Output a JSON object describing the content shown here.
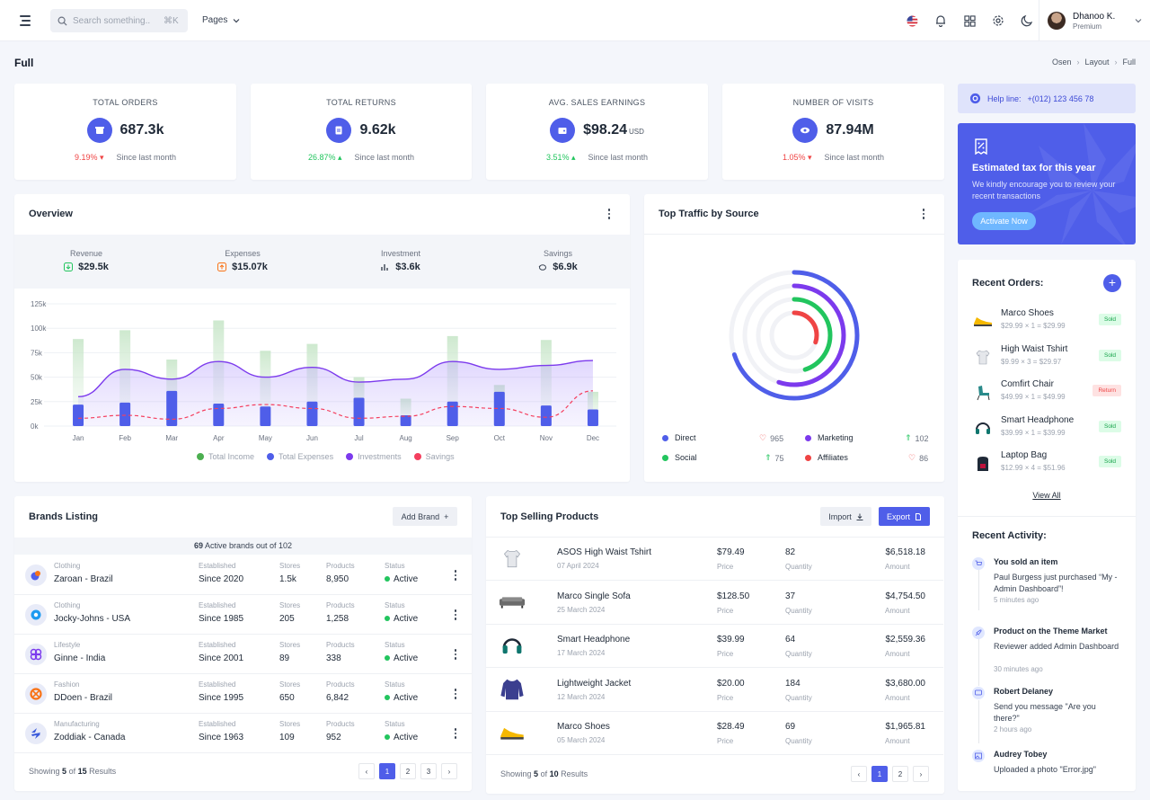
{
  "topbar": {
    "search_placeholder": "Search something..",
    "search_shortcut": "⌘K",
    "pages_label": "Pages",
    "user_name": "Dhanoo K.",
    "user_role": "Premium"
  },
  "page": {
    "title": "Full",
    "breadcrumb": [
      "Osen",
      "Layout",
      "Full"
    ]
  },
  "stats": [
    {
      "title": "TOTAL ORDERS",
      "value": "687.3k",
      "unit": "",
      "change": "9.19%",
      "dir": "down",
      "note": "Since last month",
      "icon": "box-icon"
    },
    {
      "title": "TOTAL RETURNS",
      "value": "9.62k",
      "unit": "",
      "change": "26.87%",
      "dir": "up",
      "note": "Since last month",
      "icon": "return-icon"
    },
    {
      "title": "AVG. SALES EARNINGS",
      "value": "$98.24",
      "unit": "USD",
      "change": "3.51%",
      "dir": "up",
      "note": "Since last month",
      "icon": "wallet-icon"
    },
    {
      "title": "NUMBER OF VISITS",
      "value": "87.94M",
      "unit": "",
      "change": "1.05%",
      "dir": "down",
      "note": "Since last month",
      "icon": "eye-icon"
    }
  ],
  "overview": {
    "title": "Overview",
    "summary": [
      {
        "label": "Revenue",
        "value": "$29.5k"
      },
      {
        "label": "Expenses",
        "value": "$15.07k"
      },
      {
        "label": "Investment",
        "value": "$3.6k"
      },
      {
        "label": "Savings",
        "value": "$6.9k"
      }
    ],
    "legend": [
      "Total Income",
      "Total Expenses",
      "Investments",
      "Savings"
    ]
  },
  "chart_data": {
    "type": "bar",
    "categories": [
      "Jan",
      "Feb",
      "Mar",
      "Apr",
      "May",
      "Jun",
      "Jul",
      "Aug",
      "Sep",
      "Oct",
      "Nov",
      "Dec"
    ],
    "ylim": [
      0,
      125000
    ],
    "yticks": [
      "0k",
      "25k",
      "50k",
      "75k",
      "100k",
      "125k"
    ],
    "series": [
      {
        "name": "Total Income",
        "kind": "bar",
        "color": "#c8e6c9",
        "values": [
          89000,
          98000,
          68000,
          108000,
          77000,
          84000,
          50000,
          28000,
          92000,
          42000,
          88000,
          35000
        ]
      },
      {
        "name": "Total Expenses",
        "kind": "bar",
        "color": "#4f5ee9",
        "values": [
          22000,
          24000,
          36000,
          23000,
          20000,
          25000,
          29000,
          11000,
          25000,
          35000,
          21000,
          17000
        ]
      },
      {
        "name": "Investments",
        "kind": "line",
        "color": "#7c3aed",
        "values": [
          30000,
          58000,
          48000,
          66000,
          50000,
          60000,
          45000,
          48000,
          66000,
          58000,
          62000,
          67000
        ]
      },
      {
        "name": "Savings",
        "kind": "line",
        "color": "#f43f5e",
        "values": [
          8000,
          11000,
          7000,
          18000,
          22000,
          18000,
          8000,
          10000,
          20000,
          18000,
          9000,
          36000
        ]
      }
    ]
  },
  "traffic": {
    "title": "Top Traffic by Source",
    "items": [
      {
        "label": "Direct",
        "value": "965",
        "color": "#4f5ee9",
        "dir": "down"
      },
      {
        "label": "Marketing",
        "value": "102",
        "color": "#7c3aed",
        "dir": "up"
      },
      {
        "label": "Social",
        "value": "75",
        "color": "#22c55e",
        "dir": "up"
      },
      {
        "label": "Affiliates",
        "value": "86",
        "color": "#ef4444",
        "dir": "down"
      }
    ],
    "percentages": [
      70,
      55,
      45,
      30
    ]
  },
  "help": {
    "label": "Help line:",
    "phone": "+(012) 123 456 78"
  },
  "tax": {
    "title": "Estimated tax for this year",
    "text": "We kindly encourage you to review your recent transactions",
    "button": "Activate Now"
  },
  "recent_orders": {
    "title": "Recent Orders:",
    "view_all": "View All",
    "items": [
      {
        "name": "Marco Shoes",
        "sub": "$29.99 × 1 = $29.99",
        "status": "Sold"
      },
      {
        "name": "High Waist Tshirt",
        "sub": "$9.99 × 3 = $29.97",
        "status": "Sold"
      },
      {
        "name": "Comfirt Chair",
        "sub": "$49.99 × 1 = $49.99",
        "status": "Return"
      },
      {
        "name": "Smart Headphone",
        "sub": "$39.99 × 1 = $39.99",
        "status": "Sold"
      },
      {
        "name": "Laptop Bag",
        "sub": "$12.99 × 4 = $51.96",
        "status": "Sold"
      }
    ]
  },
  "recent_activity": {
    "title": "Recent Activity:",
    "items": [
      {
        "title": "You sold an item",
        "desc": "Paul Burgess just purchased “My - Admin Dashboard”!",
        "time": "5 minutes ago"
      },
      {
        "title": "Product on the Theme Market",
        "desc": "Reviewer added Admin Dashboard",
        "time": "30 minutes ago"
      },
      {
        "title": "Robert Delaney",
        "desc": "Send you message \"Are you there?\"",
        "time": "2 hours ago"
      },
      {
        "title": "Audrey Tobey",
        "desc": "Uploaded a photo \"Error.jpg\"",
        "time": ""
      }
    ]
  },
  "brands": {
    "title": "Brands Listing",
    "add_label": "Add Brand",
    "summary_count": "69",
    "summary_text": "Active brands out of 102",
    "col_labels": {
      "established": "Established",
      "stores": "Stores",
      "products": "Products",
      "status": "Status"
    },
    "rows": [
      {
        "category": "Clothing",
        "name": "Zaroan - Brazil",
        "established": "Since 2020",
        "stores": "1.5k",
        "products": "8,950",
        "status": "Active"
      },
      {
        "category": "Clothing",
        "name": "Jocky-Johns - USA",
        "established": "Since 1985",
        "stores": "205",
        "products": "1,258",
        "status": "Active"
      },
      {
        "category": "Lifestyle",
        "name": "Ginne - India",
        "established": "Since 2001",
        "stores": "89",
        "products": "338",
        "status": "Active"
      },
      {
        "category": "Fashion",
        "name": "DDoen - Brazil",
        "established": "Since 1995",
        "stores": "650",
        "products": "6,842",
        "status": "Active"
      },
      {
        "category": "Manufacturing",
        "name": "Zoddiak - Canada",
        "established": "Since 1963",
        "stores": "109",
        "products": "952",
        "status": "Active"
      }
    ],
    "footer_pre": "Showing",
    "footer_num": "5",
    "footer_mid": "of",
    "footer_total": "15",
    "footer_post": "Results",
    "pages": [
      "1",
      "2",
      "3"
    ]
  },
  "products": {
    "title": "Top Selling Products",
    "import_label": "Import",
    "export_label": "Export",
    "labels": {
      "price": "Price",
      "quantity": "Quantity",
      "amount": "Amount"
    },
    "rows": [
      {
        "name": "ASOS High Waist Tshirt",
        "date": "07 April 2024",
        "price": "$79.49",
        "qty": "82",
        "amount": "$6,518.18"
      },
      {
        "name": "Marco Single Sofa",
        "date": "25 March 2024",
        "price": "$128.50",
        "qty": "37",
        "amount": "$4,754.50"
      },
      {
        "name": "Smart Headphone",
        "date": "17 March 2024",
        "price": "$39.99",
        "qty": "64",
        "amount": "$2,559.36"
      },
      {
        "name": "Lightweight Jacket",
        "date": "12 March 2024",
        "price": "$20.00",
        "qty": "184",
        "amount": "$3,680.00"
      },
      {
        "name": "Marco Shoes",
        "date": "05 March 2024",
        "price": "$28.49",
        "qty": "69",
        "amount": "$1,965.81"
      }
    ],
    "footer_pre": "Showing",
    "footer_num": "5",
    "footer_mid": "of",
    "footer_total": "10",
    "footer_post": "Results",
    "pages": [
      "1",
      "2"
    ]
  }
}
